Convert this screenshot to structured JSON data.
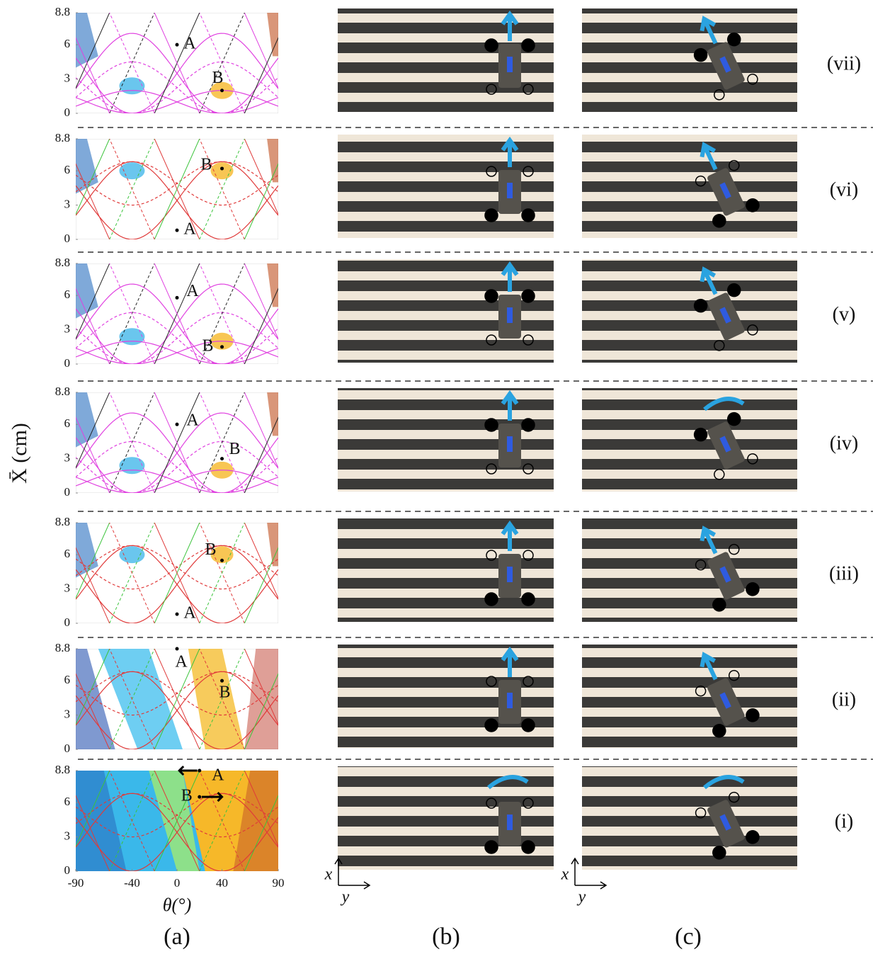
{
  "figure": {
    "y_axis_label": "X̄ (cm)",
    "x_axis_label": "θ(°)",
    "yticks": [
      0,
      3,
      6,
      8.8
    ],
    "xticks": [
      -90,
      -40,
      0,
      40,
      90
    ],
    "panels": [
      "(a)",
      "(b)",
      "(c)"
    ],
    "frame_axis_labels": [
      "x",
      "y"
    ],
    "rows": [
      {
        "label": "(vii)",
        "points": [
          "A",
          "B"
        ]
      },
      {
        "label": "(vi)",
        "points": [
          "A",
          "B"
        ]
      },
      {
        "label": "(v)",
        "points": [
          "A",
          "B"
        ]
      },
      {
        "label": "(iv)",
        "points": [
          "A",
          "B"
        ]
      },
      {
        "label": "(iii)",
        "points": [
          "A",
          "B"
        ]
      },
      {
        "label": "(ii)",
        "points": [
          "A",
          "B"
        ]
      },
      {
        "label": "(i)",
        "points": [
          "A",
          "B"
        ]
      }
    ]
  }
}
